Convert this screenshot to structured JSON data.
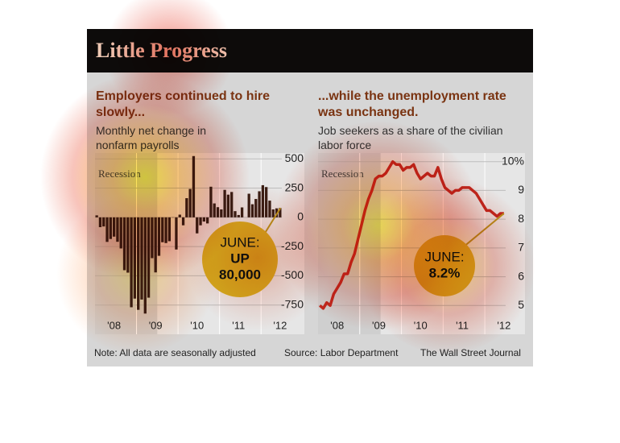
{
  "header": {
    "title": "Little Progress"
  },
  "footer": {
    "note": "Note: All data are seasonally adjusted",
    "source": "Source: Labor Department",
    "credit": "The Wall Street Journal"
  },
  "chart_data": [
    {
      "type": "bar",
      "title": "Employers continued to hire slowly...",
      "subtitle": "Monthly net change in nonfarm payrolls",
      "categories": [
        null,
        null,
        null,
        null,
        null,
        "'08",
        null,
        null,
        null,
        null,
        null,
        null,
        null,
        null,
        null,
        null,
        null,
        "'09",
        null,
        null,
        null,
        null,
        null,
        null,
        null,
        null,
        null,
        null,
        null,
        "'10",
        null,
        null,
        null,
        null,
        null,
        null,
        null,
        null,
        null,
        null,
        null,
        "'11",
        null,
        null,
        null,
        null,
        null,
        null,
        null,
        null,
        null,
        null,
        null,
        "'12"
      ],
      "values": [
        17,
        -84,
        -78,
        -210,
        -185,
        -165,
        -209,
        -266,
        -452,
        -473,
        -769,
        -695,
        -791,
        -703,
        -823,
        -687,
        -349,
        -471,
        -329,
        -213,
        -220,
        -204,
        -2,
        -275,
        23,
        -68,
        164,
        243,
        524,
        -137,
        -68,
        -36,
        -52,
        262,
        119,
        87,
        68,
        235,
        194,
        217,
        53,
        20,
        85,
        0,
        202,
        112,
        157,
        223,
        275,
        259,
        143,
        68,
        77,
        80
      ],
      "color": "#3b1e14",
      "ylim": [
        -1000,
        550
      ],
      "yticks": [
        500,
        250,
        0,
        -250,
        -500,
        -750
      ],
      "grid": true,
      "recession": {
        "label": "Recession",
        "span": [
          0,
          17
        ]
      },
      "annotation": {
        "lines": [
          "JUNE:",
          "UP",
          "80,000"
        ]
      }
    },
    {
      "type": "line",
      "title": "...while the unemployment rate was unchanged.",
      "subtitle": "Job seekers as a share of the civilian labor force",
      "categories": [
        null,
        null,
        null,
        null,
        null,
        "'08",
        null,
        null,
        null,
        null,
        null,
        null,
        null,
        null,
        null,
        null,
        null,
        "'09",
        null,
        null,
        null,
        null,
        null,
        null,
        null,
        null,
        null,
        null,
        null,
        "'10",
        null,
        null,
        null,
        null,
        null,
        null,
        null,
        null,
        null,
        null,
        null,
        "'11",
        null,
        null,
        null,
        null,
        null,
        null,
        null,
        null,
        null,
        null,
        null,
        "'12"
      ],
      "values": [
        5.0,
        4.9,
        5.1,
        5.0,
        5.4,
        5.6,
        5.8,
        6.1,
        6.1,
        6.5,
        6.8,
        7.3,
        7.8,
        8.3,
        8.7,
        9.0,
        9.4,
        9.5,
        9.5,
        9.6,
        9.8,
        10.0,
        9.9,
        9.9,
        9.7,
        9.8,
        9.8,
        9.9,
        9.6,
        9.4,
        9.5,
        9.6,
        9.5,
        9.5,
        9.8,
        9.4,
        9.1,
        9.0,
        8.9,
        9.0,
        9.0,
        9.1,
        9.1,
        9.1,
        9.0,
        8.9,
        8.7,
        8.5,
        8.3,
        8.3,
        8.2,
        8.1,
        8.2,
        8.2
      ],
      "color": "#c0281e",
      "ylim": [
        4.0,
        10.3
      ],
      "yticks": [
        {
          "value": 10,
          "label": "10%"
        },
        9,
        8,
        7,
        6,
        5
      ],
      "grid": true,
      "recession": {
        "label": "Recession",
        "span": [
          0,
          17
        ]
      },
      "annotation": {
        "lines": [
          "JUNE:",
          "8.2%"
        ]
      }
    }
  ]
}
